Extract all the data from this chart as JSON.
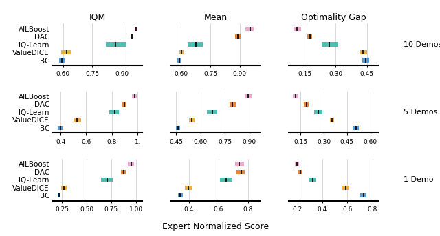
{
  "metrics": [
    "IQM",
    "Mean",
    "Optimality Gap"
  ],
  "demo_labels": [
    "10 Demos",
    "5 Demos",
    "1 Demo"
  ],
  "algorithms": [
    "AILBoost",
    "DAC",
    "IQ-Learn",
    "ValueDICE",
    "BC"
  ],
  "colors": {
    "AILBoost": "#e8a0c8",
    "DAC": "#e07828",
    "IQ-Learn": "#38b8a8",
    "ValueDICE": "#e8a830",
    "BC": "#4890d0"
  },
  "data": {
    "10 Demos": {
      "IQM": {
        "AILBoost": [
          0.968,
          0.972,
          0.976
        ],
        "DAC": [
          0.948,
          0.952,
          0.956
        ],
        "IQ-Learn": [
          0.82,
          0.868,
          0.925
        ],
        "ValueDICE": [
          0.59,
          0.618,
          0.645
        ],
        "BC": [
          0.582,
          0.595,
          0.608
        ]
      },
      "Mean": {
        "AILBoost": [
          0.93,
          0.952,
          0.972
        ],
        "DAC": [
          0.875,
          0.89,
          0.905
        ],
        "IQ-Learn": [
          0.635,
          0.675,
          0.71
        ],
        "ValueDICE": [
          0.59,
          0.604,
          0.618
        ],
        "BC": [
          0.582,
          0.592,
          0.602
        ]
      },
      "Optimality Gap": {
        "AILBoost": [
          0.098,
          0.115,
          0.133
        ],
        "DAC": [
          0.162,
          0.175,
          0.188
        ],
        "IQ-Learn": [
          0.232,
          0.268,
          0.312
        ],
        "ValueDICE": [
          0.415,
          0.432,
          0.45
        ],
        "BC": [
          0.428,
          0.444,
          0.46
        ]
      }
    },
    "5 Demos": {
      "IQM": {
        "AILBoost": [
          0.96,
          0.977,
          0.993
        ],
        "DAC": [
          0.878,
          0.896,
          0.914
        ],
        "IQ-Learn": [
          0.778,
          0.822,
          0.858
        ],
        "ValueDICE": [
          0.498,
          0.528,
          0.558
        ],
        "BC": [
          0.378,
          0.398,
          0.418
        ]
      },
      "Mean": {
        "AILBoost": [
          0.872,
          0.893,
          0.913
        ],
        "DAC": [
          0.778,
          0.798,
          0.818
        ],
        "IQ-Learn": [
          0.64,
          0.672,
          0.705
        ],
        "ValueDICE": [
          0.53,
          0.547,
          0.564
        ],
        "BC": [
          0.45,
          0.463,
          0.476
        ]
      },
      "Optimality Gap": {
        "AILBoost": [
          0.102,
          0.118,
          0.134
        ],
        "DAC": [
          0.172,
          0.188,
          0.204
        ],
        "IQ-Learn": [
          0.24,
          0.265,
          0.292
        ],
        "ValueDICE": [
          0.338,
          0.353,
          0.368
        ],
        "BC": [
          0.488,
          0.508,
          0.528
        ]
      }
    },
    "1 Demo": {
      "IQM": {
        "AILBoost": [
          0.922,
          0.955,
          0.982
        ],
        "DAC": [
          0.852,
          0.874,
          0.896
        ],
        "IQ-Learn": [
          0.648,
          0.712,
          0.768
        ],
        "ValueDICE": [
          0.238,
          0.268,
          0.298
        ],
        "BC": [
          0.205,
          0.218,
          0.232
        ]
      },
      "Mean": {
        "AILBoost": [
          0.712,
          0.742,
          0.772
        ],
        "DAC": [
          0.722,
          0.752,
          0.778
        ],
        "IQ-Learn": [
          0.608,
          0.652,
          0.692
        ],
        "ValueDICE": [
          0.372,
          0.398,
          0.424
        ],
        "BC": [
          0.328,
          0.342,
          0.358
        ]
      },
      "Optimality Gap": {
        "AILBoost": [
          0.178,
          0.195,
          0.213
        ],
        "DAC": [
          0.208,
          0.225,
          0.242
        ],
        "IQ-Learn": [
          0.288,
          0.322,
          0.352
        ],
        "ValueDICE": [
          0.558,
          0.585,
          0.612
        ],
        "BC": [
          0.702,
          0.728,
          0.752
        ]
      }
    }
  },
  "xlims": {
    "10 Demos": {
      "IQM": [
        0.548,
        1.005
      ],
      "Mean": [
        0.548,
        1.005
      ],
      "Optimality Gap": [
        0.075,
        0.505
      ]
    },
    "5 Demos": {
      "IQM": [
        0.338,
        1.038
      ],
      "Mean": [
        0.418,
        0.968
      ],
      "Optimality Gap": [
        0.075,
        0.652
      ]
    },
    "1 Demo": {
      "IQM": [
        0.155,
        1.065
      ],
      "Mean": [
        0.278,
        0.882
      ],
      "Optimality Gap": [
        0.132,
        0.848
      ]
    }
  },
  "xticks": {
    "10 Demos": {
      "IQM": [
        0.6,
        0.75,
        0.9
      ],
      "Mean": [
        0.6,
        0.75,
        0.9
      ],
      "Optimality Gap": [
        0.15,
        0.3,
        0.45
      ]
    },
    "5 Demos": {
      "IQM": [
        0.4,
        0.6,
        0.8,
        1.0
      ],
      "Mean": [
        0.45,
        0.6,
        0.75,
        0.9
      ],
      "Optimality Gap": [
        0.15,
        0.3,
        0.45,
        0.6
      ]
    },
    "1 Demo": {
      "IQM": [
        0.25,
        0.5,
        0.75,
        1.0
      ],
      "Mean": [
        0.4,
        0.6,
        0.8
      ],
      "Optimality Gap": [
        0.2,
        0.4,
        0.6,
        0.8
      ]
    }
  },
  "xtick_labels": {
    "10 Demos": {
      "IQM": [
        "0.60",
        "0.75",
        "0.90"
      ],
      "Mean": [
        "0.60",
        "0.75",
        "0.90"
      ],
      "Optimality Gap": [
        "0.15",
        "0.30",
        "0.45"
      ]
    },
    "5 Demos": {
      "IQM": [
        "0.4",
        "0.6",
        "0.8",
        "1."
      ],
      "Mean": [
        "0.45",
        "0.60",
        "0.75",
        "0.90"
      ],
      "Optimality Gap": [
        "0.15",
        "0.30",
        "0.45",
        "0.60"
      ]
    },
    "1 Demo": {
      "IQM": [
        "0.25",
        "0.50",
        "0.75",
        "1.00"
      ],
      "Mean": [
        "0.4",
        "0.6",
        "0.8"
      ],
      "Optimality Gap": [
        "0.2",
        "0.4",
        "0.6",
        "0.8"
      ]
    }
  },
  "bar_height": 0.55,
  "fig_bg": "#ffffff",
  "panel_bg": "#ffffff"
}
